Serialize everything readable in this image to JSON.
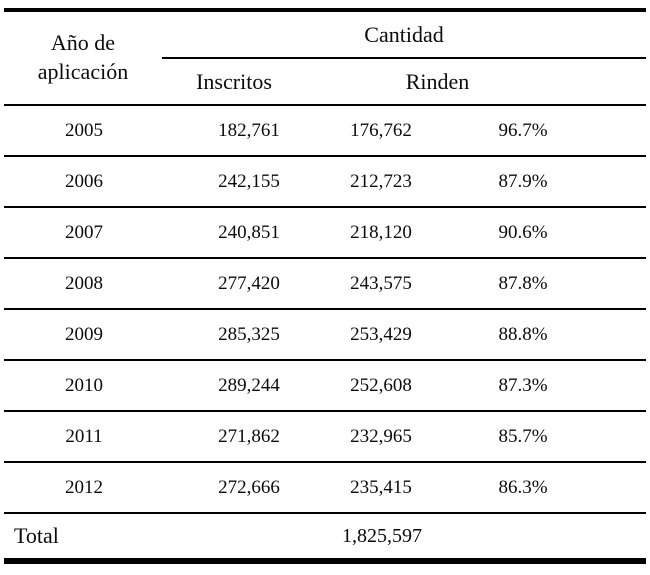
{
  "table": {
    "header": {
      "year": "Año de aplicación",
      "cantidad": "Cantidad",
      "inscritos": "Inscritos",
      "rinden": "Rinden"
    },
    "rows": [
      {
        "year": "2005",
        "inscritos": "182,761",
        "rinden": "176,762",
        "pct": "96.7%"
      },
      {
        "year": "2006",
        "inscritos": "242,155",
        "rinden": "212,723",
        "pct": "87.9%"
      },
      {
        "year": "2007",
        "inscritos": "240,851",
        "rinden": "218,120",
        "pct": "90.6%"
      },
      {
        "year": "2008",
        "inscritos": "277,420",
        "rinden": "243,575",
        "pct": "87.8%"
      },
      {
        "year": "2009",
        "inscritos": "285,325",
        "rinden": "253,429",
        "pct": "88.8%"
      },
      {
        "year": "2010",
        "inscritos": "289,244",
        "rinden": "252,608",
        "pct": "87.3%"
      },
      {
        "year": "2011",
        "inscritos": "271,862",
        "rinden": "232,965",
        "pct": "85.7%"
      },
      {
        "year": "2012",
        "inscritos": "272,666",
        "rinden": "235,415",
        "pct": "86.3%"
      }
    ],
    "total": {
      "label": "Total",
      "value": "1,825,597"
    }
  },
  "chart_data": {
    "type": "table",
    "title": "",
    "columns": [
      "Año de aplicación",
      "Inscritos",
      "Rinden",
      "Rinden %"
    ],
    "rows": [
      {
        "ano": 2005,
        "inscritos": 182761,
        "rinden": 176762,
        "rinden_pct": 96.7
      },
      {
        "ano": 2006,
        "inscritos": 242155,
        "rinden": 212723,
        "rinden_pct": 87.9
      },
      {
        "ano": 2007,
        "inscritos": 240851,
        "rinden": 218120,
        "rinden_pct": 90.6
      },
      {
        "ano": 2008,
        "inscritos": 277420,
        "rinden": 243575,
        "rinden_pct": 87.8
      },
      {
        "ano": 2009,
        "inscritos": 285325,
        "rinden": 253429,
        "rinden_pct": 88.8
      },
      {
        "ano": 2010,
        "inscritos": 289244,
        "rinden": 252608,
        "rinden_pct": 87.3
      },
      {
        "ano": 2011,
        "inscritos": 271862,
        "rinden": 232965,
        "rinden_pct": 85.7
      },
      {
        "ano": 2012,
        "inscritos": 272666,
        "rinden": 235415,
        "rinden_pct": 86.3
      }
    ],
    "total_rinden": 1825597,
    "layout": {
      "grid": "horizontal-rules-only",
      "header_spans": {
        "Cantidad": [
          "Inscritos",
          "Rinden",
          "Rinden %"
        ]
      }
    }
  }
}
